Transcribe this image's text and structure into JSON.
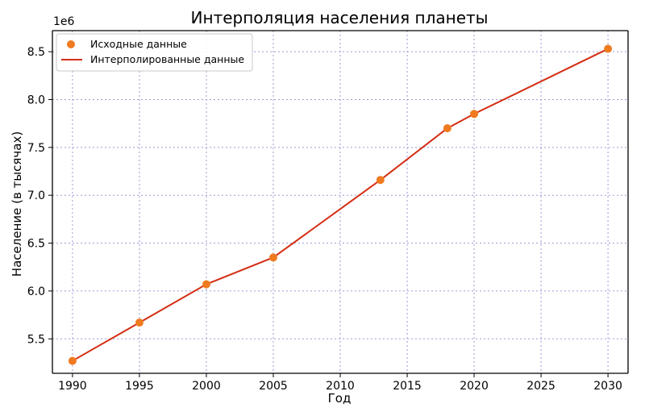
{
  "chart_data": {
    "type": "line",
    "title": "Интерполяция населения планеты",
    "xlabel": "Год",
    "ylabel": "Население (в тысячах)",
    "y_offset_label": "1e6",
    "xlim": [
      1988.5,
      2031.5
    ],
    "ylim": [
      5.14,
      8.72
    ],
    "x_ticks": [
      1990,
      1995,
      2000,
      2005,
      2010,
      2015,
      2020,
      2025,
      2030
    ],
    "y_ticks": [
      5.5,
      6.0,
      6.5,
      7.0,
      7.5,
      8.0,
      8.5
    ],
    "y_tick_labels": [
      "5.5",
      "6.0",
      "6.5",
      "7.0",
      "7.5",
      "8.0",
      "8.5"
    ],
    "grid": true,
    "legend_position": "upper-left",
    "series": [
      {
        "name": "Исходные данные",
        "kind": "scatter",
        "color": "#f07a1f",
        "x": [
          1990,
          1995,
          2000,
          2005,
          2013,
          2018,
          2020,
          2030
        ],
        "y": [
          5.27,
          5.67,
          6.07,
          6.35,
          7.16,
          7.7,
          7.85,
          8.53
        ]
      },
      {
        "name": "Интерполированные данные",
        "kind": "line",
        "color": "#d42d12",
        "x": [
          1990,
          1995,
          2000,
          2005,
          2013,
          2018,
          2020,
          2030
        ],
        "y": [
          5.27,
          5.67,
          6.07,
          6.35,
          7.16,
          7.7,
          7.85,
          8.53
        ]
      }
    ]
  }
}
